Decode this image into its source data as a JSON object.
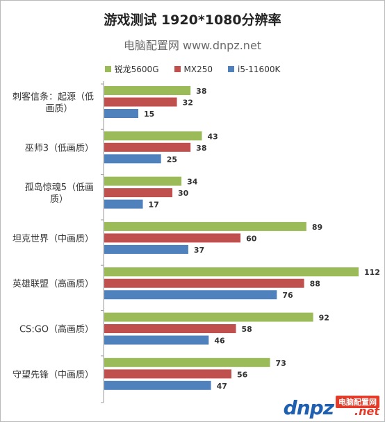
{
  "title": "游戏测试 1920*1080分辨率",
  "subtitle": "电脑配置网 www.dnpz.net",
  "watermark": {
    "logo": "dnpz",
    "badge": "电脑配置网",
    "net": ".net"
  },
  "colors": {
    "锐龙5600G": "#9bbb59",
    "MX250": "#c0504d",
    "i5-11600K": "#4f81bd"
  },
  "chart_data": {
    "type": "bar",
    "orientation": "horizontal",
    "title": "游戏测试 1920*1080分辨率",
    "categories": [
      [
        "刺客信条：起源（低",
        "画质）"
      ],
      [
        "巫师3（低画质）"
      ],
      [
        "孤岛惊魂5（低画",
        "质）"
      ],
      [
        "坦克世界（中画质）"
      ],
      [
        "英雄联盟（高画质）"
      ],
      [
        "CS:GO（高画质）"
      ],
      [
        "守望先锋（中画质）"
      ]
    ],
    "series": [
      {
        "name": "锐龙5600G",
        "values": [
          38,
          43,
          34,
          89,
          112,
          92,
          73
        ]
      },
      {
        "name": "MX250",
        "values": [
          32,
          38,
          30,
          60,
          88,
          58,
          56
        ]
      },
      {
        "name": "i5-11600K",
        "values": [
          15,
          25,
          17,
          37,
          76,
          46,
          47
        ]
      }
    ],
    "xlim": [
      0,
      120
    ],
    "legend": "top",
    "grid": false,
    "data_labels": true
  }
}
